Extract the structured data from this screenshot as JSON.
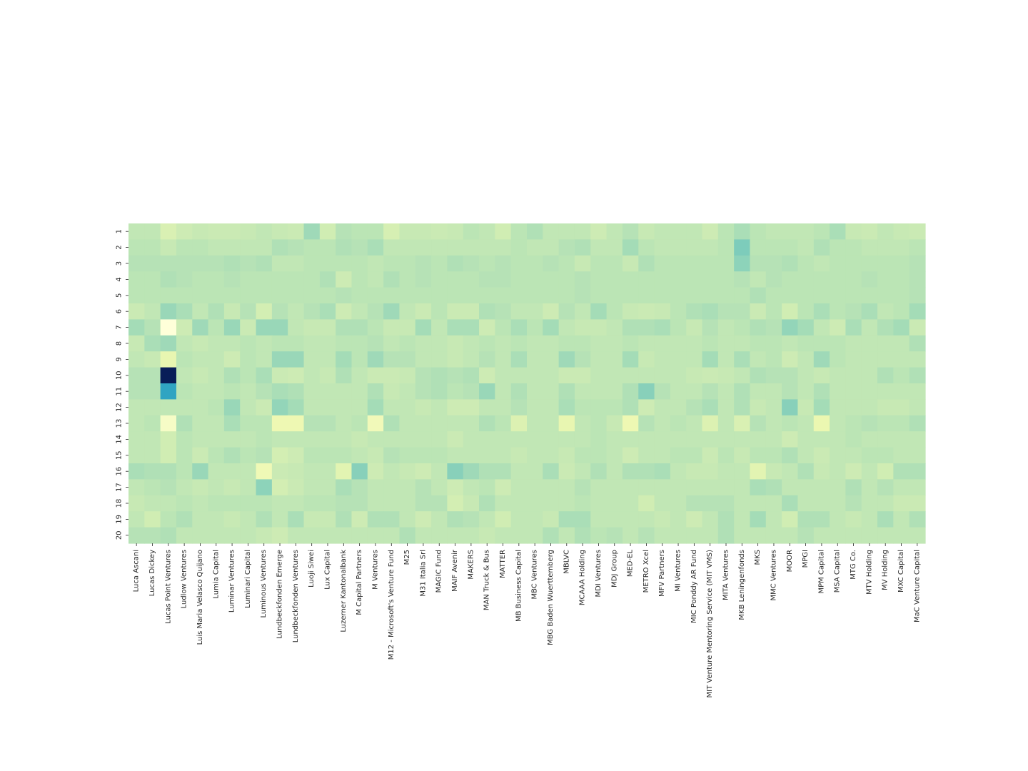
{
  "chart_data": {
    "type": "heatmap",
    "title": "",
    "xlabel": "",
    "ylabel": "",
    "colormap": "YlGnBu",
    "color_range": [
      0,
      10
    ],
    "x": [
      "Luca Ascani",
      "Lucas Dickey",
      "Lucas Point Ventures",
      "Ludlow Ventures",
      "Luis Maria Velasco Quijano",
      "Lumia Capital",
      "Luminar Ventures",
      "Luminari Capital",
      "Luminous Ventures",
      "Lundbeckfonden Emerge",
      "Lundbeckfonden Ventures",
      "Luoji Siwei",
      "Lux Capital",
      "Luzerner Kantonalbank",
      "M Capital Partners",
      "M Ventures",
      "M12 - Microsoft's Venture Fund",
      "M25",
      "M31 Italia Srl",
      "MAGIC Fund",
      "MAIF Avenir",
      "MAKERS",
      "MAN Truck & Bus",
      "MATTER",
      "MB Business Capital",
      "MBC Ventures",
      "MBG Baden Wuerttemberg",
      "MBLVC",
      "MCAAA Holding",
      "MDI Ventures",
      "MDJ Group",
      "MED-EL",
      "METRO Xcel",
      "MFV Partners",
      "MI Ventures",
      "MIC Ponddy AR Fund",
      "MIT Venture Mentoring Service (MIT VMS)",
      "MITA Ventures",
      "MKB Leningenfonds",
      "MKS",
      "MMC Ventures",
      "MOOR",
      "MPGI",
      "MPM Capital",
      "MSA Capital",
      "MTG Co.",
      "MTV Holding",
      "MV Holding",
      "MXC Capital",
      "MaC Venture Capital"
    ],
    "y": [
      "1",
      "2",
      "3",
      "4",
      "5",
      "6",
      "7",
      "8",
      "9",
      "10",
      "11",
      "12",
      "13",
      "14",
      "15",
      "16",
      "17",
      "18",
      "19",
      "20"
    ],
    "values": [
      [
        2.6,
        2.6,
        1.9,
        2.3,
        2.5,
        2.4,
        2.4,
        2.5,
        2.6,
        2.5,
        2.4,
        3.2,
        2.2,
        2.8,
        2.7,
        2.7,
        2.0,
        2.5,
        2.5,
        2.4,
        2.5,
        2.7,
        2.6,
        2.2,
        2.7,
        2.9,
        2.6,
        2.6,
        2.6,
        2.3,
        2.6,
        2.8,
        2.5,
        2.6,
        2.6,
        2.6,
        2.3,
        2.7,
        3.0,
        2.7,
        2.6,
        2.6,
        2.6,
        2.7,
        3.0,
        2.5,
        2.4,
        2.6,
        2.5,
        2.4
      ],
      [
        2.7,
        2.7,
        2.5,
        2.7,
        2.7,
        2.6,
        2.6,
        2.6,
        2.6,
        2.9,
        2.8,
        2.7,
        2.7,
        2.9,
        2.8,
        3.0,
        2.6,
        2.6,
        2.6,
        2.6,
        2.6,
        2.6,
        2.6,
        2.6,
        2.7,
        2.6,
        2.6,
        2.8,
        2.9,
        2.6,
        2.6,
        3.1,
        2.7,
        2.6,
        2.6,
        2.6,
        2.6,
        2.7,
        3.8,
        2.7,
        2.7,
        2.7,
        2.6,
        2.9,
        2.7,
        2.7,
        2.6,
        2.6,
        2.6,
        2.7
      ],
      [
        2.8,
        2.8,
        2.8,
        2.8,
        2.8,
        2.8,
        2.9,
        2.8,
        2.9,
        2.6,
        2.6,
        2.7,
        2.7,
        2.7,
        2.7,
        2.6,
        2.7,
        2.7,
        2.8,
        2.7,
        2.9,
        2.8,
        2.7,
        2.8,
        2.7,
        2.7,
        2.8,
        2.7,
        2.5,
        2.7,
        2.7,
        2.5,
        2.9,
        2.7,
        2.7,
        2.7,
        2.7,
        2.7,
        3.5,
        2.8,
        2.8,
        2.9,
        2.7,
        2.6,
        2.7,
        2.7,
        2.7,
        2.7,
        2.7,
        2.8
      ],
      [
        2.7,
        2.7,
        2.9,
        2.8,
        2.7,
        2.7,
        2.8,
        2.7,
        2.7,
        2.7,
        2.7,
        2.7,
        2.9,
        2.3,
        2.7,
        2.6,
        2.9,
        2.7,
        2.8,
        2.7,
        2.7,
        2.7,
        2.8,
        2.8,
        2.7,
        2.7,
        2.7,
        2.7,
        2.8,
        2.7,
        2.7,
        2.7,
        2.7,
        2.7,
        2.7,
        2.7,
        2.7,
        2.7,
        2.8,
        2.6,
        2.8,
        2.7,
        2.7,
        2.7,
        2.7,
        2.7,
        2.8,
        2.7,
        2.7,
        2.8
      ],
      [
        2.7,
        2.7,
        2.7,
        2.7,
        2.7,
        2.7,
        2.7,
        2.7,
        2.7,
        2.7,
        2.7,
        2.7,
        2.7,
        2.8,
        2.7,
        2.7,
        2.7,
        2.7,
        2.7,
        2.7,
        2.7,
        2.7,
        2.7,
        2.7,
        2.7,
        2.7,
        2.7,
        2.7,
        2.8,
        2.7,
        2.7,
        2.7,
        2.7,
        2.7,
        2.7,
        2.7,
        2.7,
        2.7,
        2.7,
        2.9,
        2.7,
        2.7,
        2.7,
        2.7,
        2.7,
        2.7,
        2.7,
        2.7,
        2.7,
        2.8
      ],
      [
        2.4,
        2.6,
        3.3,
        3.0,
        2.6,
        2.9,
        2.5,
        2.8,
        2.1,
        2.8,
        2.6,
        2.8,
        3.0,
        2.3,
        2.6,
        2.8,
        3.2,
        2.6,
        2.4,
        2.7,
        2.4,
        2.4,
        2.9,
        2.8,
        2.6,
        2.6,
        2.3,
        2.8,
        2.6,
        3.1,
        2.7,
        2.5,
        2.4,
        2.5,
        2.7,
        2.9,
        3.0,
        2.8,
        2.8,
        2.4,
        2.7,
        2.2,
        2.7,
        3.0,
        2.7,
        2.8,
        3.0,
        2.6,
        2.7,
        3.1
      ],
      [
        3.1,
        2.8,
        0.0,
        2.3,
        3.2,
        2.7,
        3.3,
        2.4,
        3.3,
        3.3,
        2.6,
        2.5,
        2.5,
        2.9,
        2.9,
        2.7,
        2.5,
        2.5,
        3.1,
        2.6,
        3.0,
        3.0,
        2.3,
        2.7,
        3.0,
        2.7,
        3.1,
        2.6,
        2.5,
        2.5,
        2.6,
        2.9,
        2.9,
        3.0,
        2.7,
        2.5,
        2.8,
        2.6,
        2.7,
        2.9,
        2.8,
        3.4,
        3.1,
        2.6,
        2.3,
        3.0,
        2.6,
        2.9,
        3.1,
        2.4
      ],
      [
        2.5,
        3.0,
        3.2,
        2.6,
        2.5,
        2.6,
        2.6,
        2.7,
        2.6,
        2.7,
        2.7,
        2.6,
        2.6,
        2.7,
        2.7,
        2.8,
        2.6,
        2.7,
        2.6,
        2.6,
        2.5,
        2.6,
        2.7,
        2.6,
        2.7,
        2.6,
        2.6,
        2.7,
        2.7,
        2.6,
        2.6,
        2.7,
        2.6,
        2.6,
        2.6,
        2.6,
        2.7,
        2.6,
        2.6,
        2.7,
        2.7,
        2.6,
        2.7,
        2.7,
        2.7,
        2.6,
        2.6,
        2.6,
        2.6,
        2.9
      ],
      [
        2.6,
        2.5,
        1.4,
        2.7,
        2.6,
        2.6,
        2.3,
        2.7,
        2.6,
        3.3,
        3.3,
        2.6,
        2.6,
        3.1,
        2.7,
        3.2,
        2.8,
        2.8,
        2.6,
        2.6,
        2.5,
        2.6,
        2.8,
        2.6,
        3.0,
        2.6,
        2.6,
        3.2,
        2.8,
        2.6,
        2.6,
        3.1,
        2.5,
        2.6,
        2.6,
        2.6,
        3.1,
        2.6,
        3.0,
        2.6,
        2.7,
        2.3,
        2.6,
        3.2,
        2.7,
        2.6,
        2.6,
        2.6,
        2.6,
        2.6
      ],
      [
        2.8,
        2.8,
        10.0,
        2.6,
        2.5,
        2.6,
        2.9,
        2.7,
        3.0,
        2.4,
        2.3,
        2.6,
        2.5,
        2.9,
        2.6,
        2.4,
        2.4,
        2.5,
        2.8,
        2.9,
        2.8,
        2.9,
        2.3,
        2.6,
        2.6,
        2.6,
        2.6,
        2.4,
        2.4,
        2.6,
        2.6,
        2.6,
        2.6,
        2.6,
        2.6,
        2.5,
        2.4,
        2.5,
        2.6,
        2.9,
        2.8,
        2.8,
        2.6,
        2.5,
        2.6,
        2.6,
        2.6,
        2.9,
        2.7,
        2.9
      ],
      [
        2.8,
        2.8,
        5.6,
        2.7,
        2.6,
        2.6,
        2.7,
        2.6,
        2.8,
        3.0,
        2.9,
        2.6,
        2.6,
        2.6,
        2.6,
        2.9,
        2.5,
        2.6,
        2.8,
        2.9,
        2.7,
        2.8,
        3.3,
        2.6,
        2.9,
        2.6,
        2.6,
        2.9,
        2.6,
        2.6,
        2.6,
        2.9,
        3.6,
        2.8,
        2.6,
        2.6,
        2.8,
        2.6,
        2.9,
        2.6,
        2.6,
        2.8,
        2.6,
        2.9,
        2.6,
        2.6,
        2.6,
        2.6,
        2.6,
        2.6
      ],
      [
        2.6,
        2.6,
        2.6,
        2.6,
        2.6,
        2.7,
        3.3,
        2.6,
        2.4,
        3.4,
        3.1,
        2.6,
        2.6,
        2.6,
        2.6,
        3.1,
        2.6,
        2.6,
        2.5,
        2.6,
        2.3,
        2.3,
        2.6,
        2.6,
        2.8,
        2.6,
        2.6,
        3.0,
        2.7,
        2.7,
        2.7,
        2.9,
        2.3,
        2.6,
        2.6,
        2.8,
        3.0,
        2.6,
        2.9,
        2.5,
        2.6,
        3.6,
        2.5,
        3.1,
        2.6,
        2.6,
        2.6,
        2.5,
        2.5,
        2.6
      ],
      [
        2.6,
        2.7,
        0.6,
        2.9,
        2.6,
        2.6,
        3.0,
        2.7,
        2.7,
        1.2,
        1.2,
        2.8,
        2.8,
        2.6,
        2.7,
        1.0,
        2.9,
        2.6,
        2.6,
        2.6,
        2.6,
        2.6,
        2.9,
        2.7,
        1.8,
        2.6,
        2.6,
        1.4,
        2.6,
        2.7,
        2.5,
        1.2,
        2.8,
        2.6,
        2.7,
        2.6,
        1.8,
        2.6,
        1.9,
        2.8,
        2.6,
        2.7,
        2.6,
        1.3,
        2.6,
        2.7,
        2.8,
        2.7,
        2.7,
        2.9
      ],
      [
        2.6,
        2.6,
        2.2,
        2.7,
        2.6,
        2.6,
        2.6,
        2.6,
        2.7,
        2.6,
        2.6,
        2.6,
        2.6,
        2.6,
        2.5,
        2.6,
        2.6,
        2.6,
        2.6,
        2.6,
        2.4,
        2.6,
        2.6,
        2.6,
        2.6,
        2.6,
        2.6,
        2.6,
        2.6,
        2.7,
        2.6,
        2.6,
        2.6,
        2.6,
        2.6,
        2.6,
        2.6,
        2.6,
        2.6,
        2.6,
        2.6,
        2.3,
        2.6,
        2.6,
        2.6,
        2.7,
        2.6,
        2.6,
        2.6,
        2.6
      ],
      [
        2.6,
        2.6,
        2.2,
        2.7,
        2.4,
        2.7,
        2.9,
        2.7,
        2.8,
        2.1,
        2.3,
        2.7,
        2.7,
        2.7,
        2.6,
        2.5,
        2.8,
        2.7,
        2.7,
        2.7,
        2.6,
        2.6,
        2.6,
        2.6,
        2.5,
        2.6,
        2.6,
        2.5,
        2.7,
        2.7,
        2.6,
        2.3,
        2.6,
        2.6,
        2.7,
        2.7,
        2.4,
        2.7,
        2.5,
        2.7,
        2.7,
        2.9,
        2.6,
        2.4,
        2.6,
        2.6,
        2.7,
        2.7,
        2.6,
        2.6
      ],
      [
        3.0,
        2.9,
        2.9,
        2.7,
        3.3,
        2.6,
        2.6,
        2.6,
        1.1,
        2.4,
        2.5,
        2.6,
        2.6,
        1.6,
        3.6,
        2.3,
        2.6,
        2.5,
        2.3,
        2.6,
        3.6,
        3.2,
        2.9,
        2.9,
        2.6,
        2.6,
        3.0,
        2.4,
        2.6,
        2.9,
        2.6,
        2.9,
        2.9,
        3.0,
        2.6,
        2.5,
        2.5,
        2.6,
        2.6,
        1.6,
        2.5,
        2.6,
        2.9,
        2.5,
        2.6,
        2.3,
        2.6,
        2.2,
        2.9,
        2.9
      ],
      [
        2.6,
        2.7,
        2.8,
        2.6,
        2.5,
        2.6,
        2.5,
        2.6,
        3.5,
        2.1,
        2.4,
        2.6,
        2.6,
        3.0,
        2.8,
        2.6,
        2.6,
        2.6,
        2.8,
        2.6,
        2.3,
        2.6,
        2.7,
        2.3,
        2.6,
        2.6,
        2.6,
        2.6,
        2.8,
        2.6,
        2.6,
        2.6,
        2.6,
        2.6,
        2.6,
        2.6,
        2.6,
        2.6,
        2.6,
        3.0,
        2.9,
        2.6,
        2.6,
        2.6,
        2.6,
        2.9,
        2.6,
        2.8,
        2.6,
        2.6
      ],
      [
        2.5,
        2.6,
        2.6,
        2.7,
        2.6,
        2.7,
        2.7,
        2.7,
        2.7,
        2.6,
        2.6,
        2.7,
        2.7,
        2.8,
        2.8,
        2.6,
        2.6,
        2.6,
        2.8,
        2.8,
        2.1,
        2.5,
        2.9,
        2.6,
        2.6,
        2.6,
        2.6,
        2.6,
        2.7,
        2.6,
        2.6,
        2.6,
        2.2,
        2.6,
        2.6,
        2.8,
        2.8,
        2.8,
        2.6,
        2.6,
        2.6,
        3.0,
        2.6,
        2.6,
        2.6,
        2.8,
        2.6,
        2.6,
        2.4,
        2.4
      ],
      [
        2.6,
        2.2,
        2.7,
        2.9,
        2.6,
        2.6,
        2.5,
        2.6,
        2.9,
        2.6,
        3.0,
        2.5,
        2.5,
        2.9,
        2.3,
        2.9,
        2.9,
        2.6,
        2.3,
        2.6,
        2.9,
        2.8,
        2.6,
        2.2,
        2.6,
        2.6,
        2.5,
        3.0,
        3.0,
        2.6,
        2.6,
        2.6,
        2.6,
        2.5,
        2.6,
        2.3,
        2.6,
        2.9,
        2.6,
        3.1,
        2.6,
        2.2,
        2.9,
        2.9,
        2.6,
        2.5,
        2.6,
        3.0,
        2.6,
        2.9
      ],
      [
        2.8,
        2.8,
        2.9,
        2.6,
        2.6,
        2.6,
        2.6,
        2.6,
        2.5,
        2.3,
        2.6,
        2.6,
        2.6,
        2.6,
        2.6,
        2.6,
        2.6,
        2.9,
        2.6,
        2.6,
        2.6,
        2.6,
        2.5,
        2.6,
        2.6,
        2.6,
        2.9,
        2.6,
        2.9,
        2.7,
        2.8,
        2.6,
        2.8,
        2.6,
        2.6,
        2.6,
        2.6,
        2.9,
        2.6,
        2.6,
        2.6,
        2.6,
        2.8,
        2.6,
        2.6,
        2.6,
        2.6,
        2.6,
        2.6,
        2.6
      ]
    ]
  }
}
